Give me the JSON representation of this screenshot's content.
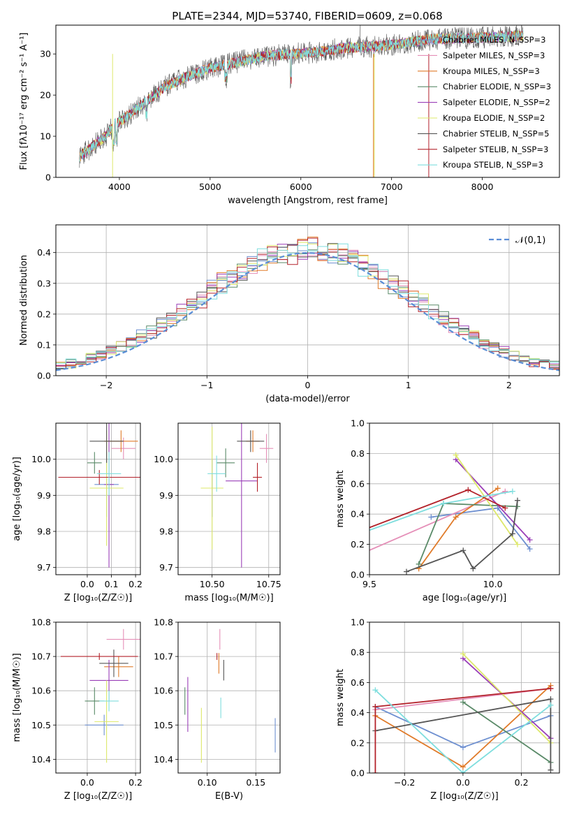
{
  "chart_data": [
    {
      "id": "spectrum",
      "type": "line",
      "title": "PLATE=2344, MJD=53740, FIBERID=0609, z=0.068",
      "xlabel": "wavelength [Angstrom, rest frame]",
      "ylabel": "Flux [fλ10⁻¹⁷ erg cm⁻² s⁻¹ A⁻¹]",
      "xlim": [
        3300,
        8850
      ],
      "ylim": [
        0,
        37
      ],
      "xticks": [
        4000,
        5000,
        6000,
        7000,
        8000
      ],
      "yticks": [
        0,
        10,
        20,
        30
      ],
      "grid": false,
      "legend_position": "right",
      "continuum": {
        "x": [
          3560,
          3700,
          3850,
          3950,
          4100,
          4300,
          4500,
          4800,
          5000,
          5300,
          5600,
          5900,
          6200,
          6500,
          6800,
          7100,
          7400,
          7700,
          8000,
          8300,
          8450
        ],
        "y": [
          5,
          7.5,
          10,
          13,
          15,
          18.5,
          22,
          25,
          26.5,
          28,
          29.5,
          30,
          30.5,
          31.5,
          31.8,
          32.5,
          33.5,
          33.8,
          34,
          34.2,
          34.5
        ]
      },
      "series": [
        {
          "name": "Chabrier MILES, N_SSP=3",
          "color": "#6d8fd0"
        },
        {
          "name": "Salpeter MILES, N_SSP=3",
          "color": "#e58fb8"
        },
        {
          "name": "Kroupa MILES, N_SSP=3",
          "color": "#e07b2a"
        },
        {
          "name": "Chabrier ELODIE, N_SSP=3",
          "color": "#5a8a68"
        },
        {
          "name": "Salpeter ELODIE, N_SSP=2",
          "color": "#9a3fb8"
        },
        {
          "name": "Kroupa ELODIE, N_SSP=2",
          "color": "#dde86a"
        },
        {
          "name": "Chabrier STELIB, N_SSP=5",
          "color": "#555555"
        },
        {
          "name": "Salpeter STELIB, N_SSP=3",
          "color": "#b3222a"
        },
        {
          "name": "Kroupa STELIB, N_SSP=3",
          "color": "#7fdede"
        }
      ]
    },
    {
      "id": "residuals",
      "type": "histogram",
      "xlabel": "(data-model)/error",
      "ylabel": "Normed distribution",
      "xlim": [
        -2.5,
        2.5
      ],
      "ylim": [
        0,
        0.49
      ],
      "xticks": [
        -2,
        -1,
        0,
        1,
        2
      ],
      "yticks": [
        0.0,
        0.1,
        0.2,
        0.3,
        0.4
      ],
      "grid": true,
      "legend": "𝒩(0,1)",
      "legend_position": "top-right",
      "gaussian": {
        "mean": 0,
        "sigma": 1,
        "color": "#5b8ed6"
      },
      "bin_width": 0.1
    },
    {
      "id": "z_age",
      "type": "errorbar",
      "xlabel": "Z [log₁₀(Z/Z☉)]",
      "ylabel": "age [log₁₀(age/yr)]",
      "xlim": [
        -0.13,
        0.22
      ],
      "ylim": [
        9.68,
        10.1
      ],
      "xticks": [
        0.0,
        0.1,
        0.2
      ],
      "yticks": [
        9.7,
        9.8,
        9.9,
        10.0
      ],
      "grid": true,
      "points": [
        {
          "x": 0.08,
          "y": 9.93,
          "xerr": 0.05,
          "yerr": 0.09,
          "color": "#6d8fd0"
        },
        {
          "x": 0.15,
          "y": 10.03,
          "xerr": 0.05,
          "yerr": 0.03,
          "color": "#e58fb8"
        },
        {
          "x": 0.14,
          "y": 10.05,
          "xerr": 0.07,
          "yerr": 0.03,
          "color": "#e07b2a"
        },
        {
          "x": 0.03,
          "y": 9.99,
          "xerr": 0.03,
          "yerr": 0.03,
          "color": "#5a8a68"
        },
        {
          "x": 0.09,
          "y": 9.93,
          "xerr": 0.02,
          "yerr": 0.23,
          "color": "#9a3fb8"
        },
        {
          "x": 0.08,
          "y": 9.92,
          "xerr": 0.07,
          "yerr": 0.16,
          "color": "#dde86a"
        },
        {
          "x": 0.08,
          "y": 10.05,
          "xerr": 0.07,
          "yerr": 0.06,
          "color": "#555555"
        },
        {
          "x": 0.05,
          "y": 9.95,
          "xerr": 0.17,
          "yerr": 0.02,
          "color": "#b3222a"
        },
        {
          "x": 0.09,
          "y": 9.96,
          "xerr": 0.05,
          "yerr": 0.06,
          "color": "#7fdede"
        }
      ]
    },
    {
      "id": "mass_age",
      "type": "errorbar",
      "xlabel": "mass [log₁₀(M/M☉)]",
      "ylabel": "",
      "xlim": [
        10.35,
        10.8
      ],
      "ylim": [
        9.68,
        10.1
      ],
      "xticks": [
        10.5,
        10.75
      ],
      "xticklabels": [
        "10.50",
        "10.75"
      ],
      "yticks": [
        9.7,
        9.8,
        9.9,
        10.0
      ],
      "grid": true,
      "points": [
        {
          "x": 10.5,
          "y": 9.92,
          "xerr": 0.04,
          "yerr": 0.08,
          "color": "#6d8fd0"
        },
        {
          "x": 10.74,
          "y": 10.03,
          "xerr": 0.03,
          "yerr": 0.04,
          "color": "#e58fb8"
        },
        {
          "x": 10.68,
          "y": 10.05,
          "xerr": 0.03,
          "yerr": 0.03,
          "color": "#e07b2a"
        },
        {
          "x": 10.56,
          "y": 9.99,
          "xerr": 0.04,
          "yerr": 0.04,
          "color": "#5a8a68"
        },
        {
          "x": 10.63,
          "y": 9.94,
          "xerr": 0.07,
          "yerr": 0.24,
          "color": "#9a3fb8"
        },
        {
          "x": 10.5,
          "y": 9.92,
          "xerr": 0.05,
          "yerr": 0.17,
          "color": "#dde86a"
        },
        {
          "x": 10.67,
          "y": 10.05,
          "xerr": 0.06,
          "yerr": 0.03,
          "color": "#555555"
        },
        {
          "x": 10.7,
          "y": 9.95,
          "xerr": 0.02,
          "yerr": 0.04,
          "color": "#b3222a"
        },
        {
          "x": 10.52,
          "y": 9.96,
          "xerr": 0.04,
          "yerr": 0.05,
          "color": "#7fdede"
        }
      ]
    },
    {
      "id": "age_weight",
      "type": "line",
      "xlabel": "age [log₁₀(age/yr)]",
      "ylabel": "mass weight",
      "xlim": [
        9.5,
        10.27
      ],
      "ylim": [
        0,
        1.0
      ],
      "xticks": [
        9.0,
        9.5,
        10.0
      ],
      "yticks": [
        0.0,
        0.2,
        0.4,
        0.6,
        0.8,
        1.0
      ],
      "grid": true,
      "series": [
        {
          "color": "#6d8fd0",
          "x": [
            9.75,
            10.02,
            10.15
          ],
          "y": [
            0.38,
            0.44,
            0.17
          ]
        },
        {
          "color": "#e58fb8",
          "x": [
            9.3,
            10.05
          ],
          "y": [
            0.02,
            0.55
          ]
        },
        {
          "color": "#e07b2a",
          "x": [
            9.7,
            9.85,
            10.02
          ],
          "y": [
            0.04,
            0.38,
            0.57
          ]
        },
        {
          "color": "#5a8a68",
          "x": [
            9.7,
            9.8,
            10.1
          ],
          "y": [
            0.07,
            0.47,
            0.45
          ]
        },
        {
          "color": "#9a3fb8",
          "x": [
            9.85,
            10.15
          ],
          "y": [
            0.76,
            0.23
          ]
        },
        {
          "color": "#dde86a",
          "x": [
            9.85,
            10.1
          ],
          "y": [
            0.79,
            0.2
          ]
        },
        {
          "color": "#555555",
          "x": [
            9.65,
            9.88,
            9.92,
            10.08,
            10.1
          ],
          "y": [
            0.02,
            0.16,
            0.04,
            0.27,
            0.49
          ]
        },
        {
          "color": "#b3222a",
          "x": [
            9.0,
            9.9,
            10.05
          ],
          "y": [
            0.0,
            0.56,
            0.44
          ]
        },
        {
          "color": "#7fdede",
          "x": [
            9.0,
            9.8,
            10.08
          ],
          "y": [
            0.0,
            0.47,
            0.55
          ]
        }
      ]
    },
    {
      "id": "z_mass",
      "type": "errorbar",
      "xlabel": "Z [log₁₀(Z/Z☉)]",
      "ylabel": "mass [log₁₀(M/M☉)]",
      "xlim": [
        -0.13,
        0.22
      ],
      "ylim": [
        10.36,
        10.8
      ],
      "xticks": [
        0.0,
        0.2
      ],
      "yticks": [
        10.4,
        10.5,
        10.6,
        10.7,
        10.8
      ],
      "grid": true,
      "points": [
        {
          "x": 0.07,
          "y": 10.5,
          "xerr": 0.08,
          "yerr": 0.03,
          "color": "#6d8fd0"
        },
        {
          "x": 0.15,
          "y": 10.75,
          "xerr": 0.07,
          "yerr": 0.03,
          "color": "#e58fb8"
        },
        {
          "x": 0.13,
          "y": 10.67,
          "xerr": 0.06,
          "yerr": 0.03,
          "color": "#e07b2a"
        },
        {
          "x": 0.03,
          "y": 10.57,
          "xerr": 0.04,
          "yerr": 0.04,
          "color": "#5a8a68"
        },
        {
          "x": 0.09,
          "y": 10.63,
          "xerr": 0.08,
          "yerr": 0.06,
          "color": "#9a3fb8"
        },
        {
          "x": 0.08,
          "y": 10.51,
          "xerr": 0.05,
          "yerr": 0.12,
          "color": "#dde86a"
        },
        {
          "x": 0.11,
          "y": 10.68,
          "xerr": 0.06,
          "yerr": 0.04,
          "color": "#555555"
        },
        {
          "x": 0.05,
          "y": 10.7,
          "xerr": 0.16,
          "yerr": 0.01,
          "color": "#b3222a"
        },
        {
          "x": 0.09,
          "y": 10.57,
          "xerr": 0.04,
          "yerr": 0.03,
          "color": "#7fdede"
        }
      ]
    },
    {
      "id": "ebv_mass",
      "type": "errorbar",
      "xlabel": "E(B-V)",
      "ylabel": "",
      "xlim": [
        0.07,
        0.175
      ],
      "ylim": [
        10.36,
        10.8
      ],
      "xticks": [
        0.1,
        0.15
      ],
      "xticklabels": [
        "0.10",
        "0.15"
      ],
      "yticks": [
        10.4,
        10.5,
        10.6,
        10.7,
        10.8
      ],
      "grid": true,
      "points": [
        {
          "x": 0.17,
          "y": 10.47,
          "yerr": 0.05,
          "color": "#6d8fd0"
        },
        {
          "x": 0.113,
          "y": 10.75,
          "yerr": 0.03,
          "color": "#e58fb8"
        },
        {
          "x": 0.112,
          "y": 10.68,
          "yerr": 0.03,
          "color": "#e07b2a"
        },
        {
          "x": 0.077,
          "y": 10.57,
          "yerr": 0.04,
          "color": "#5a8a68"
        },
        {
          "x": 0.08,
          "y": 10.56,
          "yerr": 0.08,
          "color": "#9a3fb8"
        },
        {
          "x": 0.094,
          "y": 10.47,
          "yerr": 0.08,
          "color": "#dde86a"
        },
        {
          "x": 0.117,
          "y": 10.66,
          "yerr": 0.03,
          "color": "#555555"
        },
        {
          "x": 0.11,
          "y": 10.7,
          "yerr": 0.01,
          "color": "#b3222a"
        },
        {
          "x": 0.114,
          "y": 10.55,
          "yerr": 0.03,
          "color": "#7fdede"
        }
      ]
    },
    {
      "id": "z_weight",
      "type": "line",
      "xlabel": "Z [log₁₀(Z/Z☉)]",
      "ylabel": "mass weight",
      "xlim": [
        -0.32,
        0.33
      ],
      "ylim": [
        0,
        1.0
      ],
      "xticks": [
        -0.2,
        0.0,
        0.2
      ],
      "yticks": [
        0.0,
        0.2,
        0.4,
        0.6,
        0.8,
        1.0
      ],
      "grid": true,
      "series": [
        {
          "color": "#6d8fd0",
          "x": [
            -0.3,
            0.0,
            0.3
          ],
          "y": [
            0.44,
            0.17,
            0.38
          ]
        },
        {
          "color": "#e58fb8",
          "x": [
            -0.3,
            0.3
          ],
          "y": [
            0.42,
            0.56
          ]
        },
        {
          "color": "#e07b2a",
          "x": [
            -0.3,
            0.0,
            0.3
          ],
          "y": [
            0.38,
            0.04,
            0.58
          ]
        },
        {
          "color": "#5a8a68",
          "x": [
            0.0,
            0.3
          ],
          "y": [
            0.47,
            0.07
          ]
        },
        {
          "color": "#9a3fb8",
          "x": [
            0.0,
            0.3
          ],
          "y": [
            0.76,
            0.23
          ]
        },
        {
          "color": "#dde86a",
          "x": [
            0.0,
            0.3
          ],
          "y": [
            0.79,
            0.2
          ]
        },
        {
          "color": "#555555",
          "x": [
            -0.3,
            0.3,
            0.3
          ],
          "y": [
            0.28,
            0.49,
            0.02
          ]
        },
        {
          "color": "#b3222a",
          "x": [
            -0.3,
            -0.3,
            0.3
          ],
          "y": [
            0.0,
            0.44,
            0.56
          ]
        },
        {
          "color": "#7fdede",
          "x": [
            -0.3,
            0.0,
            0.3
          ],
          "y": [
            0.55,
            0.0,
            0.45
          ]
        }
      ]
    }
  ]
}
